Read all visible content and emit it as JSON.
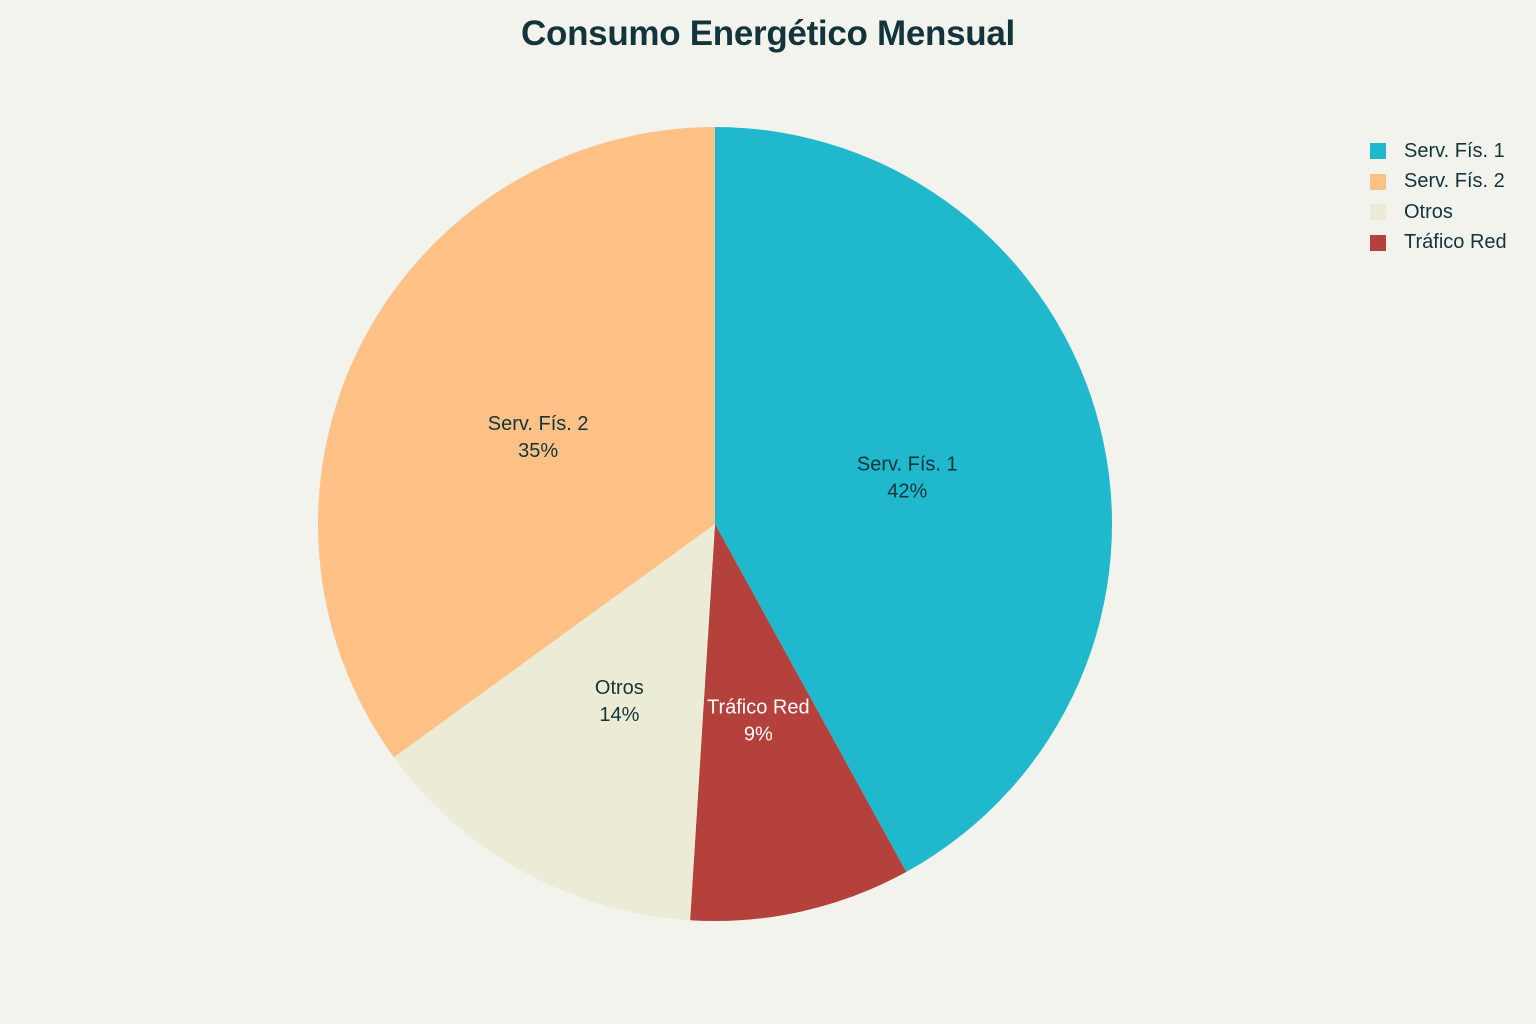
{
  "chart_data": {
    "type": "pie",
    "title": "Consumo Energético Mensual",
    "legend_position": "top-right",
    "slices": [
      {
        "label": "Serv. Fís. 1",
        "value": 42,
        "display": "42%",
        "color": "#1fb8cd",
        "label_color": "#13343b"
      },
      {
        "label": "Tráfico Red",
        "value": 9,
        "display": "9%",
        "color": "#b4413c",
        "label_color": "#ffffff"
      },
      {
        "label": "Otros",
        "value": 14,
        "display": "14%",
        "color": "#ecebd5",
        "label_color": "#13343b"
      },
      {
        "label": "Serv. Fís. 2",
        "value": 35,
        "display": "35%",
        "color": "#ffc185",
        "label_color": "#13343b"
      }
    ],
    "legend_order": [
      "Serv. Fís. 1",
      "Serv. Fís. 2",
      "Otros",
      "Tráfico Red"
    ]
  }
}
